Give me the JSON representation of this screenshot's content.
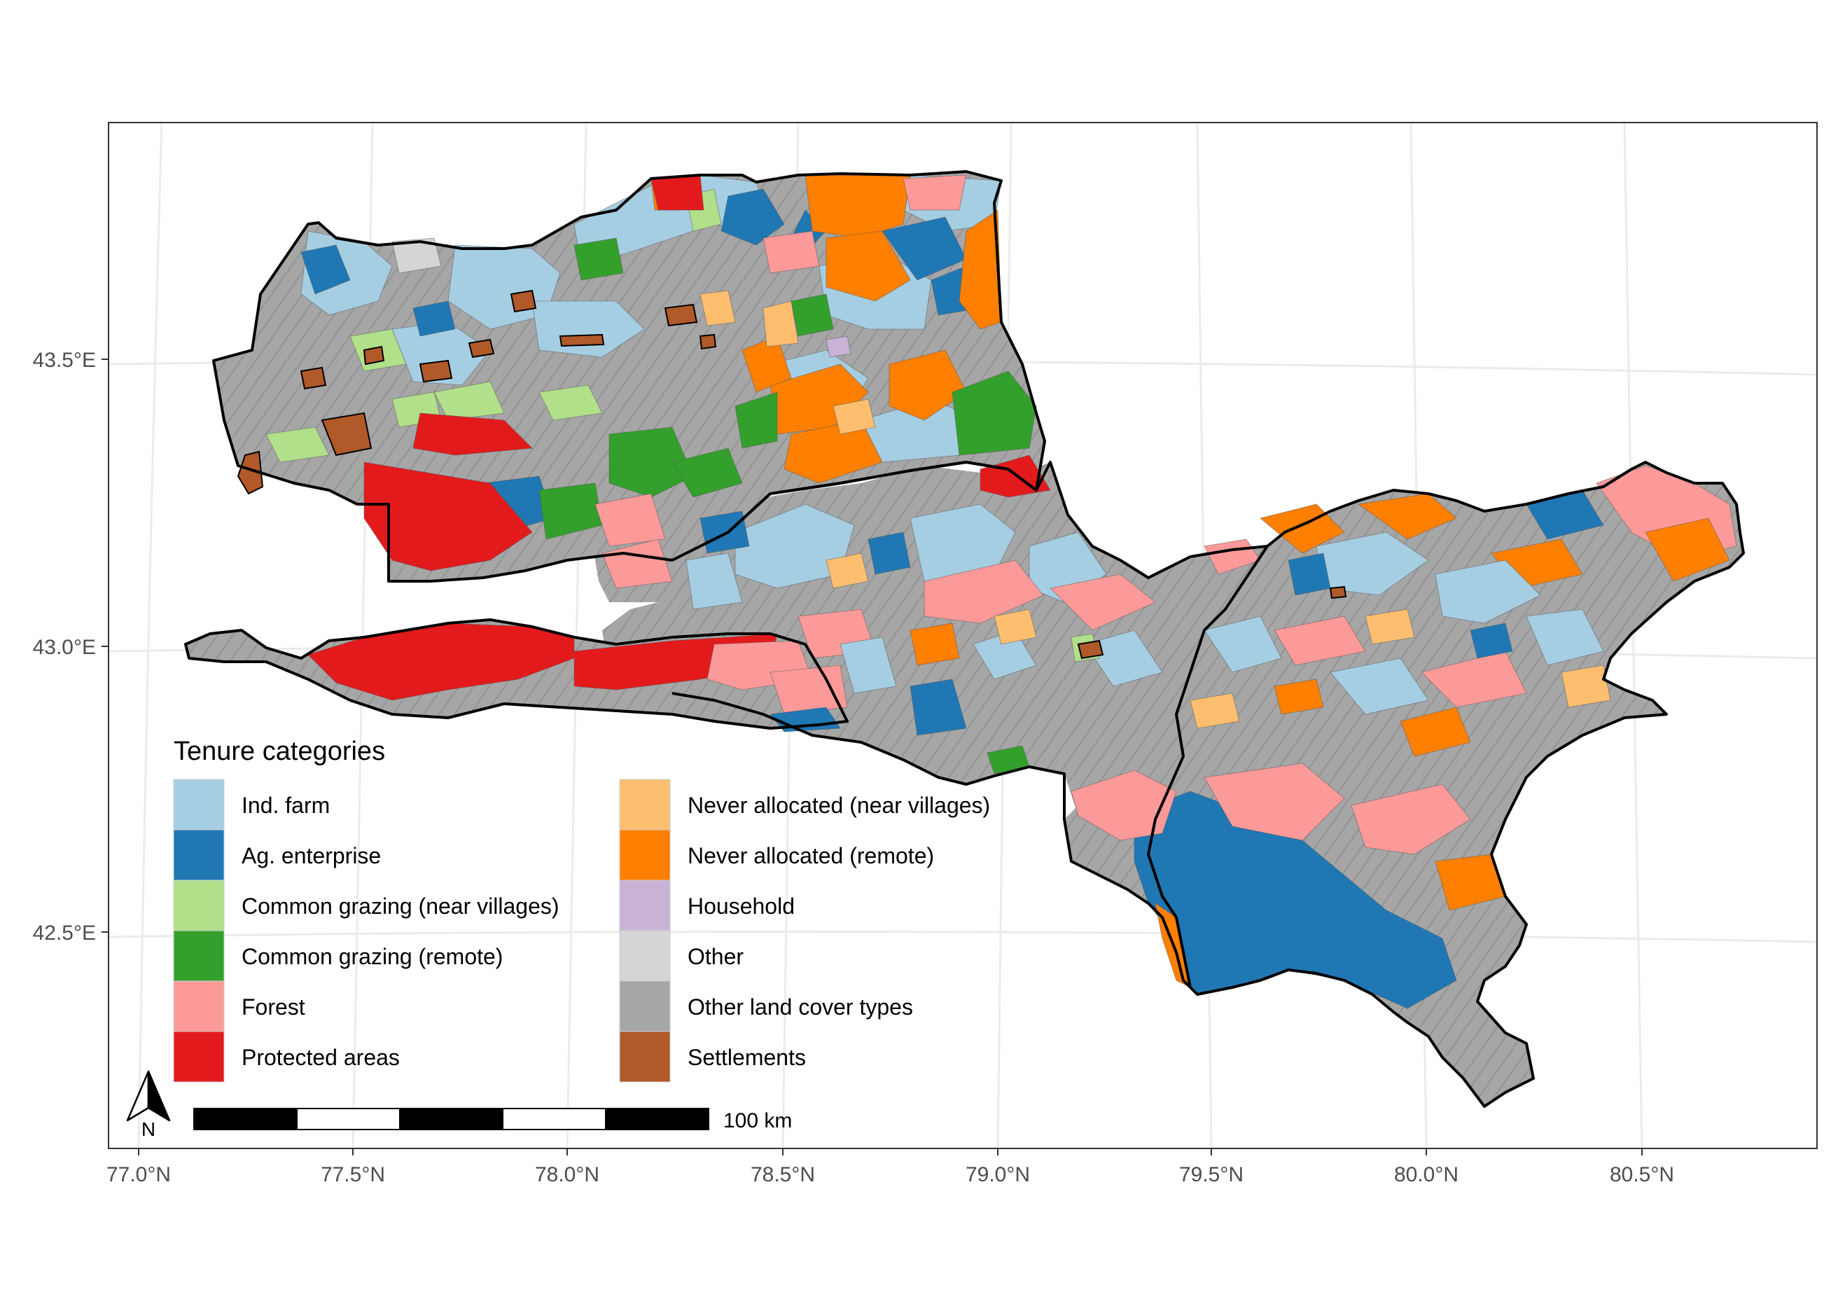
{
  "map": {
    "x_ticks": [
      "77.0°N",
      "77.5°N",
      "78.0°N",
      "78.5°N",
      "79.0°N",
      "79.5°N",
      "80.0°N",
      "80.5°N"
    ],
    "y_ticks": [
      "43.5°E",
      "43.0°E",
      "42.5°E"
    ],
    "legend": {
      "title": "Tenure categories",
      "items": [
        {
          "label": "Ind. farm",
          "color": "#a6cee3"
        },
        {
          "label": "Ag. enterprise",
          "color": "#1f78b4"
        },
        {
          "label": "Common grazing (near villages)",
          "color": "#b2df8a"
        },
        {
          "label": "Common grazing (remote)",
          "color": "#33a02c"
        },
        {
          "label": "Forest",
          "color": "#fb9a99"
        },
        {
          "label": "Protected areas",
          "color": "#e31a1c"
        },
        {
          "label": "Never allocated (near villages)",
          "color": "#fdbf6f"
        },
        {
          "label": "Never allocated (remote)",
          "color": "#ff7f00"
        },
        {
          "label": "Household",
          "color": "#cab2d6"
        },
        {
          "label": "Other",
          "color": "#d5d5d5"
        },
        {
          "label": "Other land cover types",
          "color": "#a6a6a6"
        },
        {
          "label": "Settlements",
          "color": "#b15928"
        }
      ]
    },
    "scale_bar": {
      "label": "100 km"
    },
    "north_arrow": {
      "label": "N",
      "icon": "north-arrow-icon"
    }
  }
}
